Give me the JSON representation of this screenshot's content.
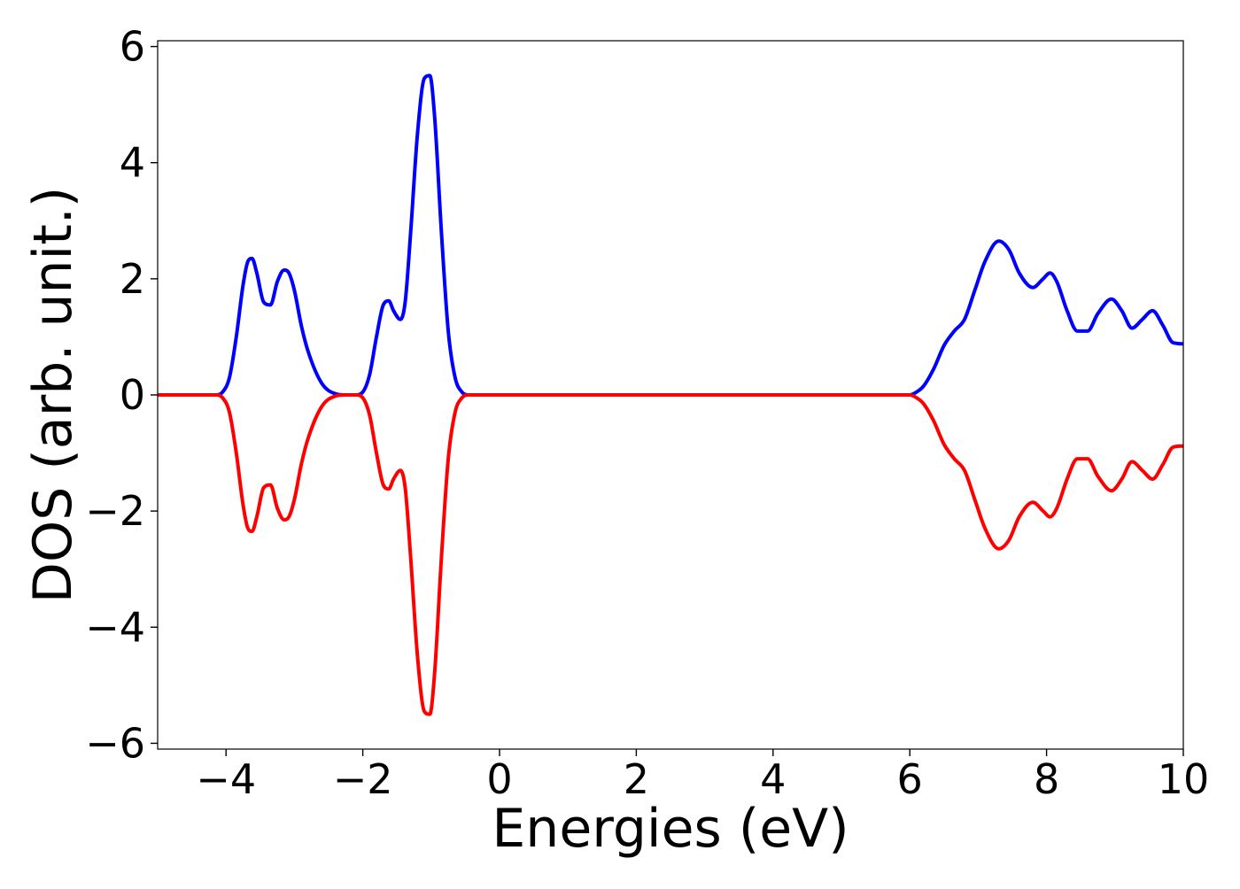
{
  "chart_data": {
    "type": "line",
    "title": "",
    "xlabel": "Energies (eV)",
    "ylabel": "DOS (arb. unit.)",
    "xlim": [
      -5,
      10
    ],
    "ylim": [
      -6.1,
      6.1
    ],
    "xticks": [
      -4,
      -2,
      0,
      2,
      4,
      6,
      8,
      10
    ],
    "yticks": [
      -6,
      -4,
      -2,
      0,
      2,
      4,
      6
    ],
    "xtick_labels": [
      "−4",
      "−2",
      "0",
      "2",
      "4",
      "6",
      "8",
      "10"
    ],
    "ytick_labels": [
      "−6",
      "−4",
      "−2",
      "0",
      "2",
      "4",
      "6"
    ],
    "grid": false,
    "legend": "none",
    "series": [
      {
        "color": "#0000ff",
        "x": [
          -5.0,
          -4.3,
          -4.15,
          -4.05,
          -3.95,
          -3.85,
          -3.75,
          -3.68,
          -3.62,
          -3.55,
          -3.45,
          -3.35,
          -3.25,
          -3.15,
          -3.08,
          -3.0,
          -2.9,
          -2.8,
          -2.6,
          -2.4,
          -2.25,
          -2.1,
          -2.0,
          -1.9,
          -1.8,
          -1.7,
          -1.62,
          -1.55,
          -1.45,
          -1.38,
          -1.3,
          -1.2,
          -1.1,
          -1.02,
          -0.95,
          -0.85,
          -0.75,
          -0.65,
          -0.55,
          -0.45,
          0.0,
          2.0,
          4.0,
          5.5,
          6.0,
          6.1,
          6.2,
          6.35,
          6.5,
          6.65,
          6.8,
          6.95,
          7.1,
          7.3,
          7.45,
          7.6,
          7.8,
          7.95,
          8.05,
          8.15,
          8.3,
          8.45,
          8.6,
          8.75,
          8.95,
          9.1,
          9.25,
          9.4,
          9.55,
          9.7,
          9.85,
          10.0
        ],
        "y": [
          0.0,
          0.0,
          0.0,
          0.05,
          0.3,
          1.0,
          1.9,
          2.3,
          2.35,
          2.1,
          1.6,
          1.55,
          1.95,
          2.15,
          2.1,
          1.8,
          1.2,
          0.75,
          0.2,
          0.02,
          0.0,
          0.0,
          0.05,
          0.35,
          1.0,
          1.55,
          1.62,
          1.45,
          1.3,
          1.6,
          2.8,
          4.5,
          5.45,
          5.5,
          4.8,
          2.8,
          1.1,
          0.3,
          0.05,
          0.0,
          0.0,
          0.0,
          0.0,
          0.0,
          0.0,
          0.05,
          0.15,
          0.45,
          0.85,
          1.1,
          1.3,
          1.8,
          2.3,
          2.65,
          2.5,
          2.1,
          1.85,
          2.0,
          2.1,
          1.95,
          1.45,
          1.1,
          1.1,
          1.4,
          1.65,
          1.45,
          1.15,
          1.3,
          1.45,
          1.2,
          0.9,
          0.88
        ]
      },
      {
        "color": "#ff0000",
        "x": [
          -5.0,
          -4.3,
          -4.15,
          -4.05,
          -3.95,
          -3.85,
          -3.75,
          -3.68,
          -3.62,
          -3.55,
          -3.45,
          -3.35,
          -3.25,
          -3.15,
          -3.08,
          -3.0,
          -2.9,
          -2.8,
          -2.6,
          -2.4,
          -2.25,
          -2.1,
          -2.0,
          -1.9,
          -1.8,
          -1.7,
          -1.62,
          -1.55,
          -1.45,
          -1.38,
          -1.3,
          -1.2,
          -1.1,
          -1.02,
          -0.95,
          -0.85,
          -0.75,
          -0.65,
          -0.55,
          -0.45,
          0.0,
          2.0,
          4.0,
          5.5,
          6.0,
          6.1,
          6.2,
          6.35,
          6.5,
          6.65,
          6.8,
          6.95,
          7.1,
          7.3,
          7.45,
          7.6,
          7.8,
          7.95,
          8.05,
          8.15,
          8.3,
          8.45,
          8.6,
          8.75,
          8.95,
          9.1,
          9.25,
          9.4,
          9.55,
          9.7,
          9.85,
          10.0
        ],
        "y": [
          0.0,
          0.0,
          0.0,
          -0.05,
          -0.3,
          -1.0,
          -1.9,
          -2.3,
          -2.35,
          -2.1,
          -1.6,
          -1.55,
          -1.95,
          -2.15,
          -2.1,
          -1.8,
          -1.2,
          -0.75,
          -0.2,
          -0.02,
          0.0,
          0.0,
          -0.05,
          -0.35,
          -1.0,
          -1.55,
          -1.62,
          -1.45,
          -1.3,
          -1.6,
          -2.8,
          -4.5,
          -5.45,
          -5.5,
          -4.8,
          -2.8,
          -1.1,
          -0.3,
          -0.05,
          0.0,
          0.0,
          0.0,
          0.0,
          0.0,
          0.0,
          -0.05,
          -0.15,
          -0.45,
          -0.85,
          -1.1,
          -1.3,
          -1.8,
          -2.3,
          -2.65,
          -2.5,
          -2.1,
          -1.85,
          -2.0,
          -2.1,
          -1.95,
          -1.45,
          -1.1,
          -1.1,
          -1.4,
          -1.65,
          -1.45,
          -1.15,
          -1.3,
          -1.45,
          -1.2,
          -0.9,
          -0.88
        ]
      }
    ]
  }
}
